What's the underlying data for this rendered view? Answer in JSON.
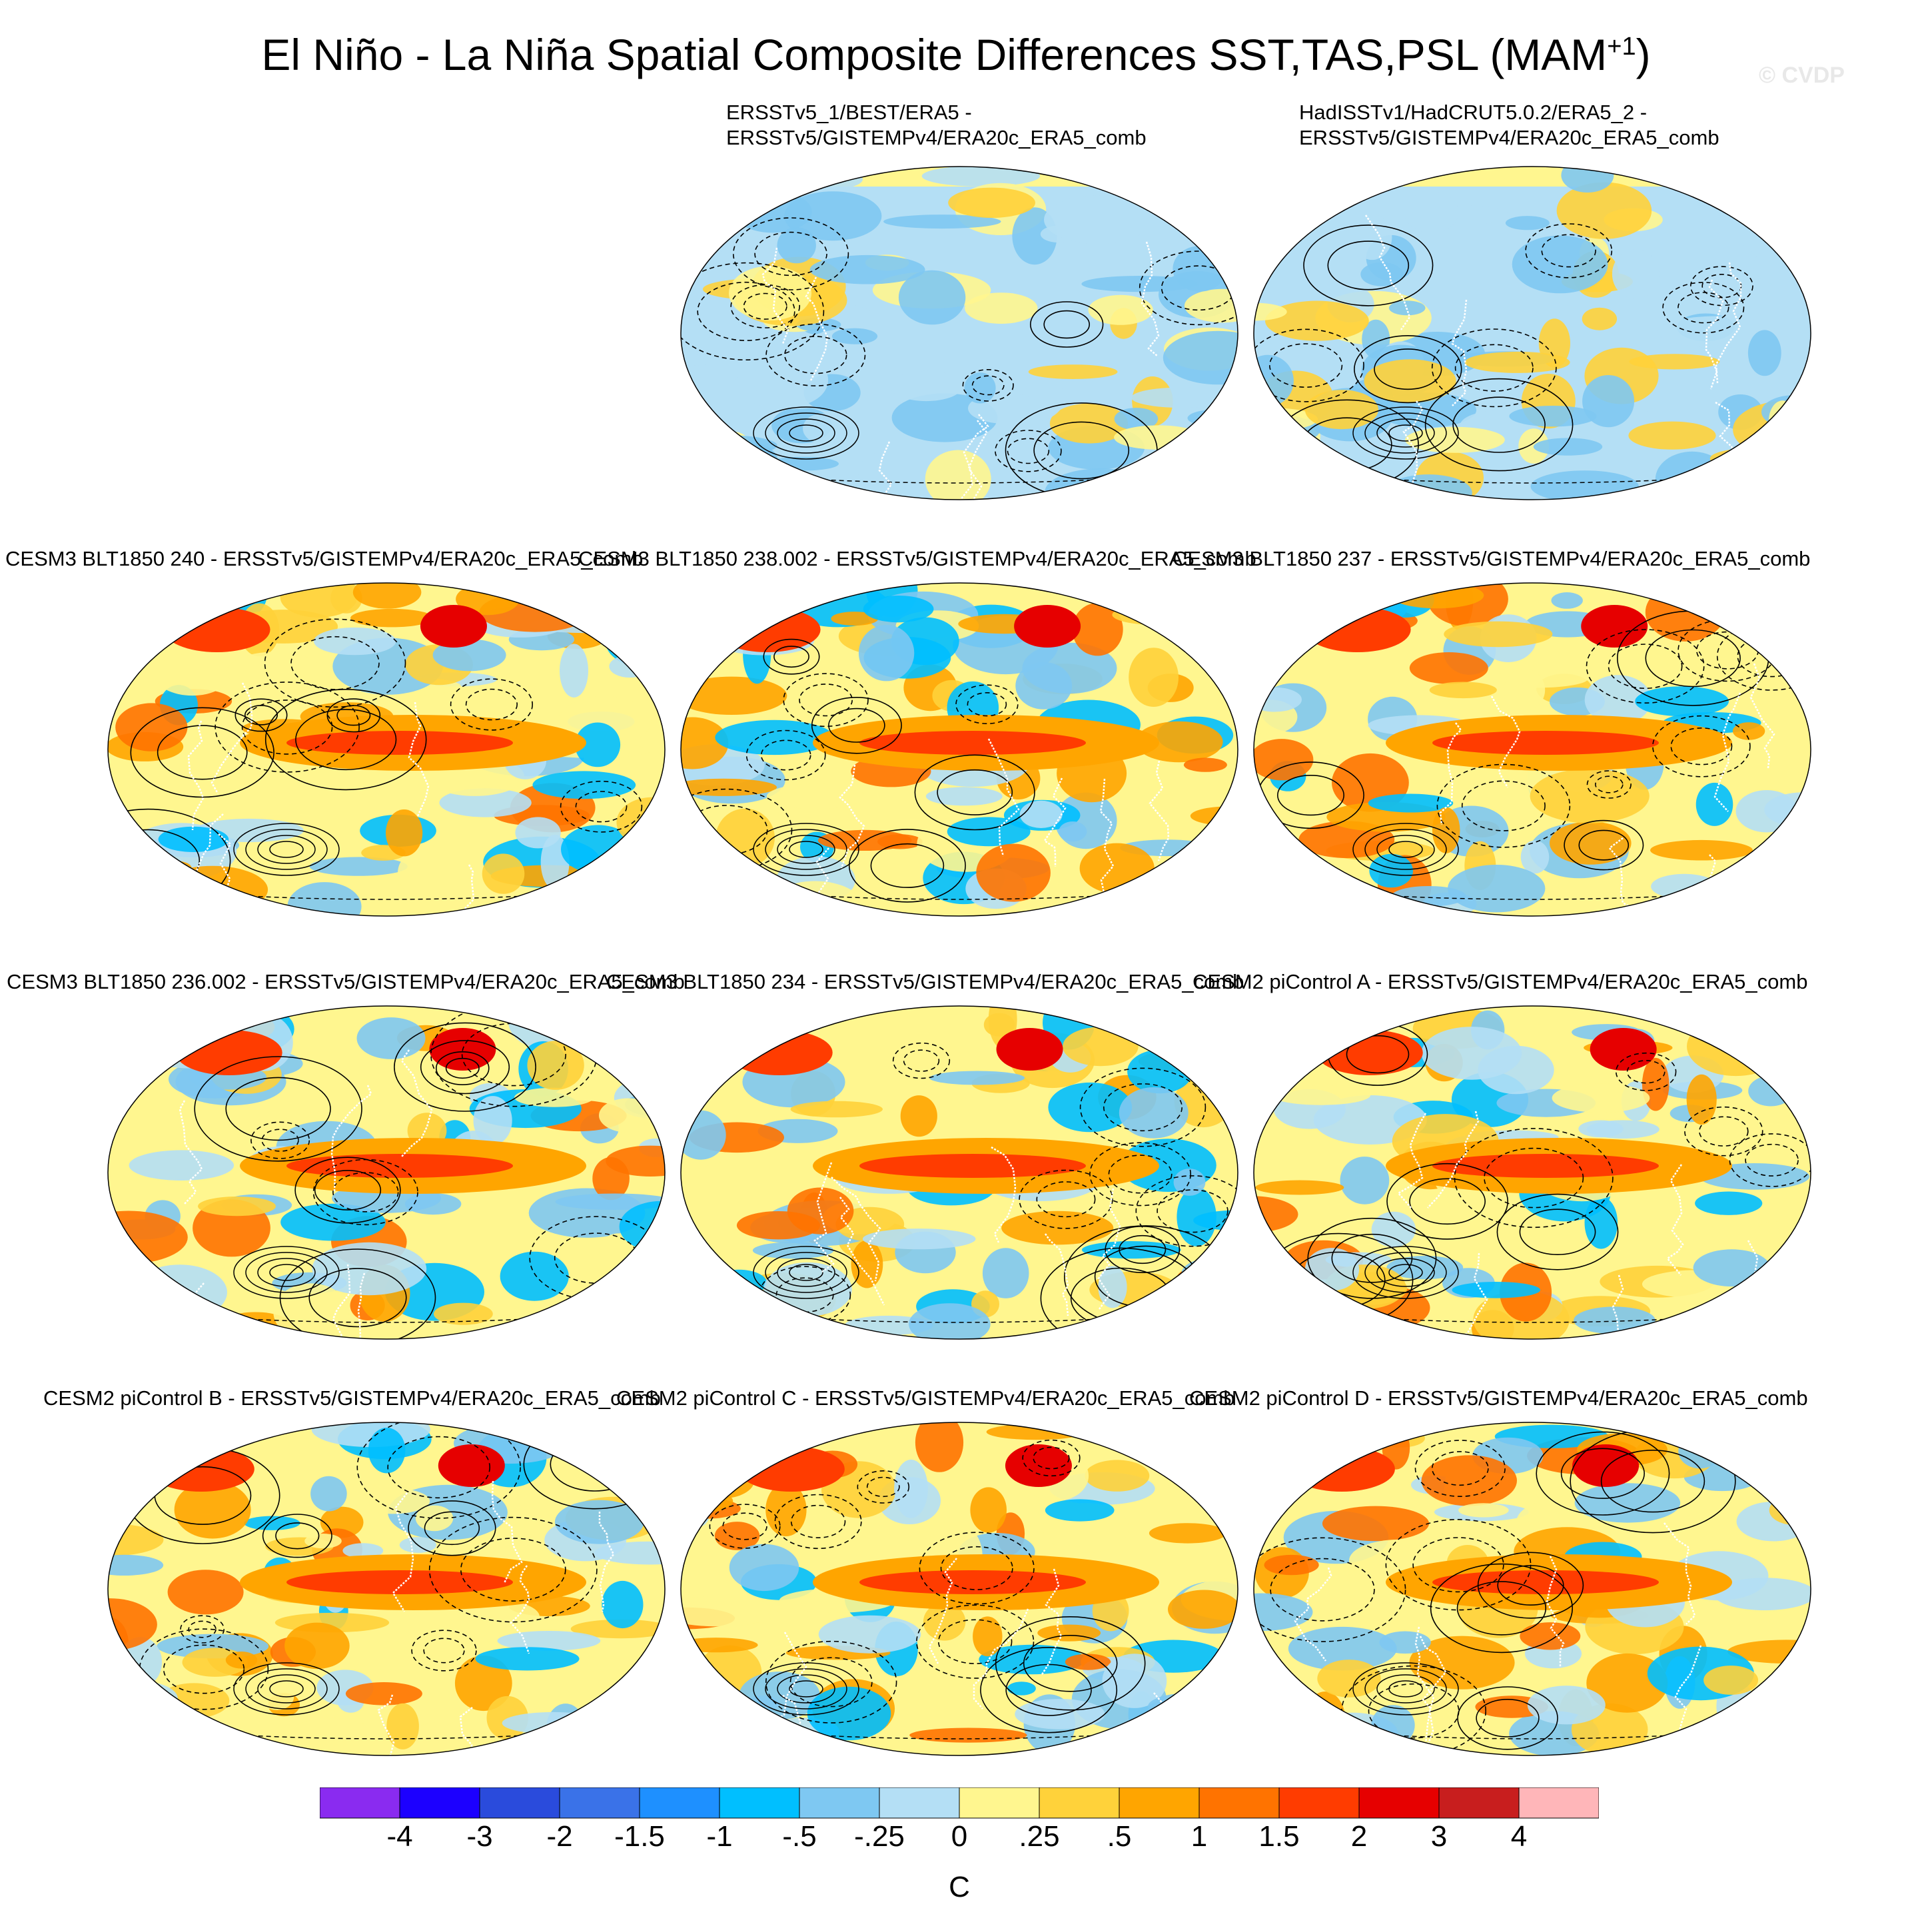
{
  "title": {
    "main": "El Niño - La Niña Spatial Composite Differences SST,TAS,PSL (MAM",
    "superscript": "+1",
    "close": ")"
  },
  "watermark": "© CVDP",
  "panels": [
    {
      "id": "obs1",
      "label_lines": [
        "ERSSTv5_1/BEST/ERA5 -",
        "ERSSTv5/GISTEMPv4/ERA20c_ERA5_comb"
      ]
    },
    {
      "id": "obs2",
      "label_lines": [
        "HadISSTv1/HadCRUT5.0.2/ERA5_2 -",
        "ERSSTv5/GISTEMPv4/ERA20c_ERA5_comb"
      ]
    },
    {
      "id": "m1",
      "label_lines": [
        "CESM3 BLT1850 240 - ERSSTv5/GISTEMPv4/ERA20c_ERA5_comb"
      ]
    },
    {
      "id": "m2",
      "label_lines": [
        "CESM3 BLT1850 238.002 - ERSSTv5/GISTEMPv4/ERA20c_ERA5_comb"
      ]
    },
    {
      "id": "m3",
      "label_lines": [
        "CESM3 BLT1850 237 - ERSSTv5/GISTEMPv4/ERA20c_ERA5_comb"
      ]
    },
    {
      "id": "m4",
      "label_lines": [
        "CESM3 BLT1850 236.002 - ERSSTv5/GISTEMPv4/ERA20c_ERA5_comb"
      ]
    },
    {
      "id": "m5",
      "label_lines": [
        "CESM3 BLT1850 234 - ERSSTv5/GISTEMPv4/ERA20c_ERA5_comb"
      ]
    },
    {
      "id": "m6",
      "label_lines": [
        "CESM2 piControl A - ERSSTv5/GISTEMPv4/ERA20c_ERA5_comb"
      ]
    },
    {
      "id": "m7",
      "label_lines": [
        "CESM2 piControl B - ERSSTv5/GISTEMPv4/ERA20c_ERA5_comb"
      ]
    },
    {
      "id": "m8",
      "label_lines": [
        "CESM2 piControl C - ERSSTv5/GISTEMPv4/ERA20c_ERA5_comb"
      ]
    },
    {
      "id": "m9",
      "label_lines": [
        "CESM2 piControl D - ERSSTv5/GISTEMPv4/ERA20c_ERA5_comb"
      ]
    }
  ],
  "colorbar": {
    "colors": [
      "#8a2bf0",
      "#1c00ff",
      "#2a4bdc",
      "#3a72e8",
      "#1e90ff",
      "#00bfff",
      "#7ec8f2",
      "#b4dff5",
      "#fff68f",
      "#ffd23a",
      "#ffa500",
      "#ff7300",
      "#ff3c00",
      "#e60000",
      "#c81e1e",
      "#ffb6b9"
    ],
    "ticks": [
      "-4",
      "-3",
      "-2",
      "-1.5",
      "-1",
      "-.5",
      "-.25",
      "0",
      ".25",
      ".5",
      "1",
      "1.5",
      "2",
      "3",
      "4"
    ],
    "units": "C"
  }
}
